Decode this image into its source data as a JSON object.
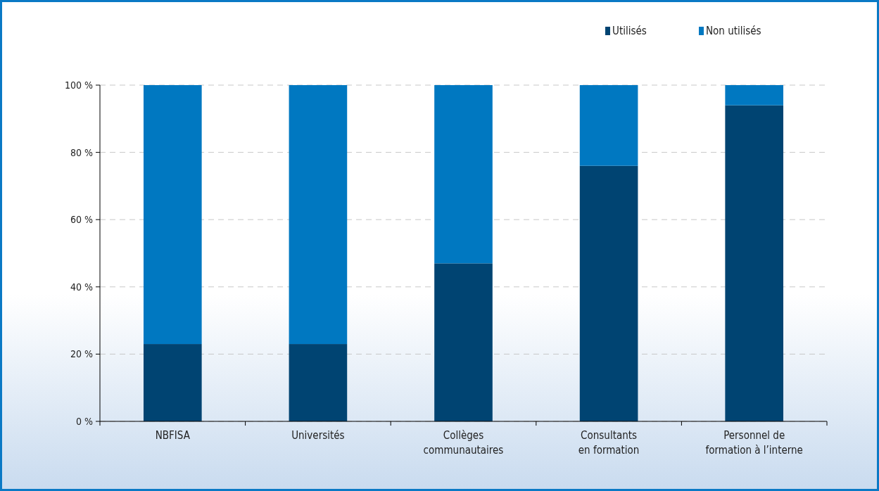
{
  "chart_data": {
    "type": "bar",
    "stacked": true,
    "categories": [
      "NBFISA",
      "Universités",
      "Collèges\ncommunautaires",
      "Consultants\nen formation",
      "Personnel de\nformation à l’interne"
    ],
    "series": [
      {
        "name": "Utilisés",
        "color": "#004472",
        "values": [
          23,
          23,
          47,
          76,
          94
        ]
      },
      {
        "name": "Non utilisés",
        "color": "#0078c1",
        "values": [
          77,
          77,
          53,
          24,
          6
        ]
      }
    ],
    "ylim": [
      0,
      100
    ],
    "yticks": [
      {
        "value": 0,
        "label": "0 %"
      },
      {
        "value": 20,
        "label": "20 %"
      },
      {
        "value": 40,
        "label": "40 %"
      },
      {
        "value": 60,
        "label": "60 %"
      },
      {
        "value": 80,
        "label": "80 %"
      },
      {
        "value": 100,
        "label": "100 %"
      }
    ],
    "grid": "y",
    "legend": "top right"
  }
}
